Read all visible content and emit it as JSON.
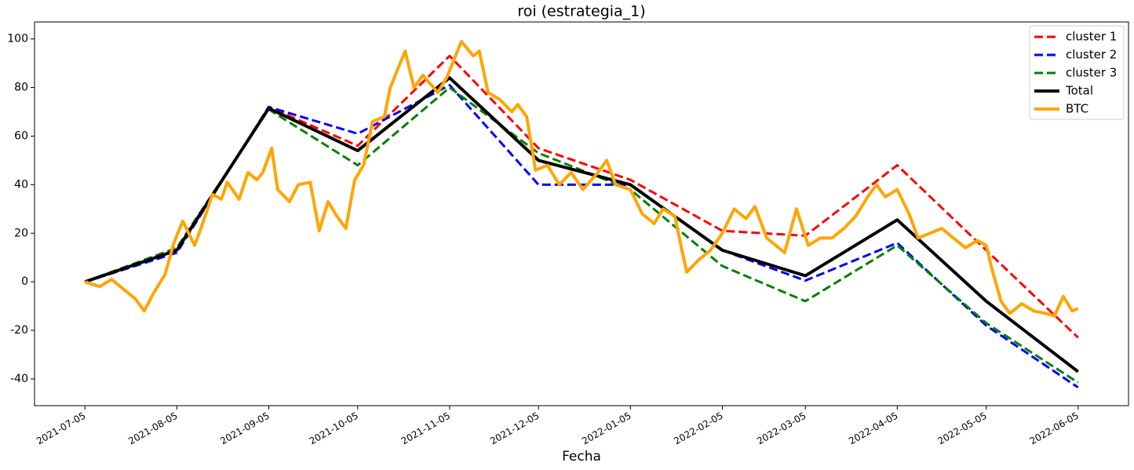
{
  "chart_data": {
    "type": "line",
    "title": "roi (estrategia_1)",
    "x_label": "Fecha",
    "xlim": [
      "2021-06-18",
      "2022-06-22"
    ],
    "ylim": [
      -51,
      107
    ],
    "xticks": [
      "2021-07-05",
      "2021-08-05",
      "2021-09-05",
      "2021-10-05",
      "2021-11-05",
      "2021-12-05",
      "2022-01-05",
      "2022-02-05",
      "2022-03-05",
      "2022-04-05",
      "2022-05-05",
      "2022-06-05"
    ],
    "yticks": [
      -40,
      -20,
      0,
      20,
      40,
      60,
      80,
      100
    ],
    "grid": false,
    "legend": "upper right",
    "series": [
      {
        "name": "cluster 1",
        "color": "#ff0000",
        "linestyle": "dashed",
        "x": [
          "2021-07-05",
          "2021-08-05",
          "2021-09-05",
          "2021-10-05",
          "2021-11-05",
          "2021-12-05",
          "2022-01-05",
          "2022-02-05",
          "2022-03-05",
          "2022-04-05",
          "2022-05-05",
          "2022-06-05"
        ],
        "values": [
          0,
          12,
          72,
          56,
          93,
          55,
          42,
          21,
          19,
          48,
          13,
          -23
        ]
      },
      {
        "name": "cluster 2",
        "color": "#0000ff",
        "linestyle": "dashed",
        "x": [
          "2021-07-05",
          "2021-08-05",
          "2021-09-05",
          "2021-10-05",
          "2021-11-05",
          "2021-12-05",
          "2022-01-05",
          "2022-02-05",
          "2022-03-05",
          "2022-04-05",
          "2022-05-05",
          "2022-06-05"
        ],
        "values": [
          0,
          12,
          72,
          61,
          81,
          40,
          40,
          13,
          0.5,
          16,
          -18,
          -43.5
        ]
      },
      {
        "name": "cluster 3",
        "color": "#008000",
        "linestyle": "dashed",
        "x": [
          "2021-07-05",
          "2021-08-05",
          "2021-09-05",
          "2021-10-05",
          "2021-11-05",
          "2021-12-05",
          "2022-01-05",
          "2022-02-05",
          "2022-03-05",
          "2022-04-05",
          "2022-05-05",
          "2022-06-05"
        ],
        "values": [
          0,
          14,
          71,
          48,
          80,
          53,
          38,
          6.5,
          -8,
          15,
          -17,
          -41.5
        ]
      },
      {
        "name": "Total",
        "color": "#000000",
        "linestyle": "solid",
        "x": [
          "2021-07-05",
          "2021-08-05",
          "2021-09-05",
          "2021-10-05",
          "2021-11-05",
          "2021-12-05",
          "2022-01-05",
          "2022-02-05",
          "2022-03-05",
          "2022-04-05",
          "2022-05-05",
          "2022-06-05"
        ],
        "values": [
          0,
          13,
          71.5,
          54,
          84,
          50,
          40,
          13,
          2.5,
          25.5,
          -8,
          -37
        ]
      },
      {
        "name": "BTC",
        "color": "#ffa500",
        "linestyle": "solid",
        "x": [
          "2021-07-05",
          "2021-07-10",
          "2021-07-14",
          "2021-07-18",
          "2021-07-22",
          "2021-07-25",
          "2021-07-28",
          "2021-08-01",
          "2021-08-04",
          "2021-08-07",
          "2021-08-11",
          "2021-08-14",
          "2021-08-17",
          "2021-08-20",
          "2021-08-22",
          "2021-08-26",
          "2021-08-29",
          "2021-09-01",
          "2021-09-03",
          "2021-09-06",
          "2021-09-08",
          "2021-09-12",
          "2021-09-15",
          "2021-09-19",
          "2021-09-22",
          "2021-09-25",
          "2021-09-28",
          "2021-10-01",
          "2021-10-04",
          "2021-10-07",
          "2021-10-10",
          "2021-10-14",
          "2021-10-16",
          "2021-10-21",
          "2021-10-24",
          "2021-10-27",
          "2021-11-01",
          "2021-11-04",
          "2021-11-09",
          "2021-11-13",
          "2021-11-15",
          "2021-11-18",
          "2021-11-22",
          "2021-11-26",
          "2021-11-28",
          "2021-12-01",
          "2021-12-04",
          "2021-12-08",
          "2021-12-12",
          "2021-12-16",
          "2021-12-20",
          "2021-12-25",
          "2021-12-28",
          "2021-12-31",
          "2022-01-05",
          "2022-01-09",
          "2022-01-13",
          "2022-01-16",
          "2022-01-20",
          "2022-01-22",
          "2022-01-24",
          "2022-01-28",
          "2022-02-01",
          "2022-02-05",
          "2022-02-09",
          "2022-02-13",
          "2022-02-16",
          "2022-02-20",
          "2022-02-23",
          "2022-02-26",
          "2022-03-02",
          "2022-03-06",
          "2022-03-10",
          "2022-03-14",
          "2022-03-18",
          "2022-03-22",
          "2022-03-26",
          "2022-03-29",
          "2022-04-01",
          "2022-04-05",
          "2022-04-09",
          "2022-04-12",
          "2022-04-16",
          "2022-04-20",
          "2022-04-24",
          "2022-04-28",
          "2022-05-02",
          "2022-05-05",
          "2022-05-07",
          "2022-05-10",
          "2022-05-13",
          "2022-05-17",
          "2022-05-21",
          "2022-05-25",
          "2022-05-28",
          "2022-05-31",
          "2022-06-03",
          "2022-06-05"
        ],
        "values": [
          0,
          -2,
          1,
          -3,
          -7,
          -12,
          -5,
          3,
          16,
          25,
          15,
          25,
          36,
          34,
          41,
          34,
          45,
          42,
          45,
          55,
          38,
          33,
          40,
          41,
          21,
          33,
          27,
          22,
          42,
          48,
          66,
          68,
          80,
          95,
          80,
          85,
          78,
          84,
          99,
          93,
          95,
          78,
          75,
          70,
          73,
          68,
          46,
          48,
          40,
          45,
          38,
          45,
          50,
          40,
          38,
          28,
          24,
          30,
          27,
          15,
          4,
          9,
          13,
          20,
          30,
          26,
          31,
          18,
          15,
          12,
          30,
          15,
          18,
          18,
          22,
          27,
          35,
          40,
          35,
          38,
          28,
          18,
          20,
          22,
          18,
          14,
          17,
          15,
          5,
          -8,
          -13,
          -9,
          -12,
          -13,
          -14,
          -6,
          -12,
          -11
        ]
      }
    ]
  }
}
